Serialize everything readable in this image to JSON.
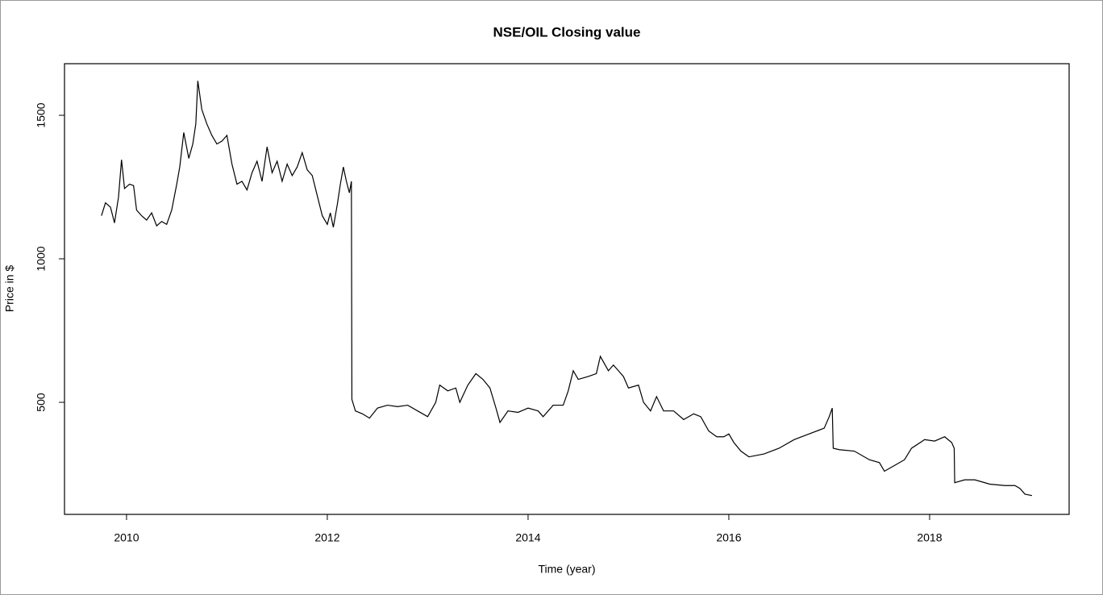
{
  "chart_data": {
    "type": "line",
    "title": "NSE/OIL Closing value",
    "x_label": "Time (year)",
    "y_label": "Price in $",
    "x": [
      2009.75,
      2009.79,
      2009.84,
      2009.88,
      2009.92,
      2009.95,
      2009.98,
      2010.03,
      2010.07,
      2010.1,
      2010.15,
      2010.2,
      2010.25,
      2010.3,
      2010.35,
      2010.4,
      2010.45,
      2010.5,
      2010.53,
      2010.57,
      2010.62,
      2010.66,
      2010.69,
      2010.71,
      2010.75,
      2010.8,
      2010.85,
      2010.9,
      2010.95,
      2011.0,
      2011.05,
      2011.1,
      2011.15,
      2011.2,
      2011.25,
      2011.3,
      2011.35,
      2011.4,
      2011.45,
      2011.5,
      2011.55,
      2011.6,
      2011.65,
      2011.7,
      2011.75,
      2011.8,
      2011.85,
      2011.9,
      2011.95,
      2012.0,
      2012.03,
      2012.06,
      2012.1,
      2012.13,
      2012.16,
      2012.19,
      2012.22,
      2012.24,
      2012.245,
      2012.28,
      2012.35,
      2012.42,
      2012.5,
      2012.6,
      2012.7,
      2012.8,
      2012.9,
      2013.0,
      2013.08,
      2013.12,
      2013.2,
      2013.28,
      2013.32,
      2013.4,
      2013.48,
      2013.55,
      2013.62,
      2013.68,
      2013.72,
      2013.8,
      2013.9,
      2014.0,
      2014.1,
      2014.15,
      2014.25,
      2014.35,
      2014.4,
      2014.45,
      2014.5,
      2014.6,
      2014.68,
      2014.72,
      2014.8,
      2014.85,
      2014.95,
      2015.0,
      2015.1,
      2015.15,
      2015.22,
      2015.28,
      2015.35,
      2015.45,
      2015.55,
      2015.65,
      2015.72,
      2015.8,
      2015.88,
      2015.95,
      2016.0,
      2016.05,
      2016.12,
      2016.2,
      2016.35,
      2016.5,
      2016.65,
      2016.8,
      2016.95,
      2017.0,
      2017.03,
      2017.04,
      2017.1,
      2017.25,
      2017.4,
      2017.5,
      2017.55,
      2017.65,
      2017.75,
      2017.82,
      2017.95,
      2018.05,
      2018.15,
      2018.22,
      2018.245,
      2018.25,
      2018.35,
      2018.45,
      2018.6,
      2018.75,
      2018.85,
      2018.9,
      2018.95,
      2019.02
    ],
    "series": [
      {
        "name": "Closing",
        "color": "#000000",
        "values": [
          1150,
          1195,
          1180,
          1125,
          1215,
          1345,
          1245,
          1260,
          1255,
          1170,
          1150,
          1135,
          1160,
          1115,
          1130,
          1120,
          1170,
          1260,
          1320,
          1440,
          1350,
          1400,
          1470,
          1620,
          1520,
          1470,
          1430,
          1400,
          1410,
          1430,
          1330,
          1260,
          1270,
          1240,
          1300,
          1340,
          1270,
          1390,
          1300,
          1340,
          1270,
          1330,
          1290,
          1320,
          1370,
          1310,
          1290,
          1220,
          1150,
          1120,
          1160,
          1110,
          1190,
          1260,
          1320,
          1270,
          1230,
          1270,
          510,
          470,
          460,
          445,
          480,
          490,
          485,
          490,
          470,
          450,
          500,
          560,
          540,
          550,
          500,
          560,
          600,
          580,
          550,
          480,
          430,
          470,
          465,
          480,
          470,
          450,
          490,
          490,
          540,
          610,
          580,
          590,
          600,
          660,
          610,
          630,
          590,
          550,
          560,
          500,
          470,
          520,
          470,
          470,
          440,
          460,
          450,
          400,
          380,
          380,
          390,
          360,
          330,
          310,
          320,
          340,
          370,
          390,
          410,
          450,
          480,
          340,
          335,
          330,
          300,
          290,
          260,
          280,
          300,
          340,
          370,
          365,
          380,
          360,
          340,
          220,
          230,
          230,
          215,
          210,
          210,
          200,
          180,
          175
        ]
      }
    ],
    "xlim": [
      2009.382,
      2019.39
    ],
    "ylim": [
      109.6,
      1679.8
    ],
    "xticks": [
      2010,
      2012,
      2014,
      2016,
      2018
    ],
    "yticks": [
      500,
      1000,
      1500
    ]
  }
}
